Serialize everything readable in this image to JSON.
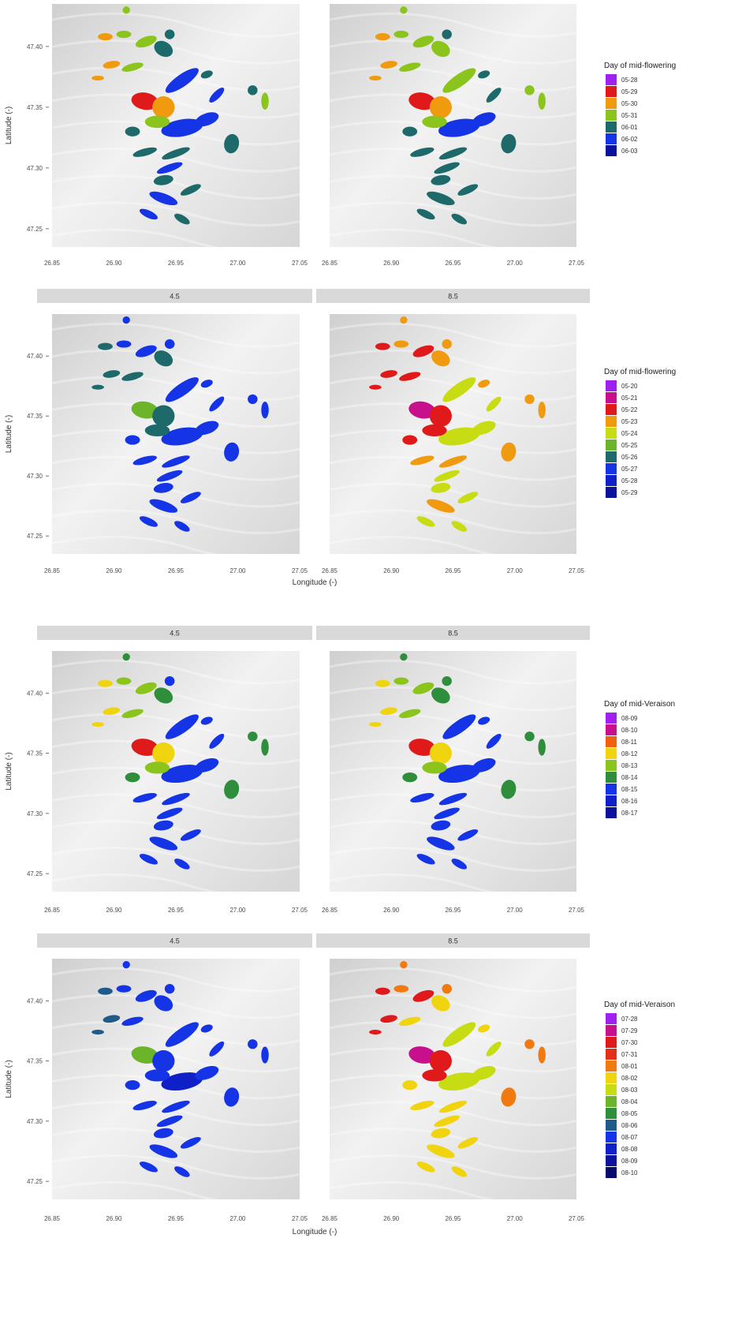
{
  "x_axis": {
    "label": "Longitude (-)",
    "ticks": [
      "26.85",
      "26.90",
      "26.95",
      "27.00",
      "27.05"
    ],
    "range": [
      26.85,
      27.05
    ]
  },
  "y_axis": {
    "label": "Latitude (-)",
    "ticks": [
      "47.25",
      "47.30",
      "47.35",
      "47.40"
    ],
    "range": [
      47.235,
      47.435
    ]
  },
  "colors": {
    "panel_bg": "#dcdcdc",
    "strip_bg": "#d9d9d9",
    "legend_palette": [
      "#a020f0",
      "#c8108c",
      "#e01a1a",
      "#f06010",
      "#f09a10",
      "#f0d410",
      "#c8dc14",
      "#6cb42a",
      "#2e8e3c",
      "#1e6a6a",
      "#1434e6",
      "#1020c8",
      "#0a129c",
      "#050a6c"
    ]
  },
  "figures": [
    {
      "strips": [],
      "show_ylabel": true,
      "show_xlabel": false,
      "legend": {
        "title": "Day of mid-flowering",
        "items": [
          {
            "label": "05-28",
            "color": "#a020f0"
          },
          {
            "label": "05-29",
            "color": "#e01a1a"
          },
          {
            "label": "05-30",
            "color": "#f09a10"
          },
          {
            "label": "05-31",
            "color": "#8cc41e"
          },
          {
            "label": "06-01",
            "color": "#1e6a6a"
          },
          {
            "label": "06-02",
            "color": "#1434e6"
          },
          {
            "label": "06-03",
            "color": "#0a129c"
          }
        ]
      }
    },
    {
      "strips": [
        "4.5",
        "8.5"
      ],
      "show_ylabel": true,
      "show_xlabel": true,
      "legend": {
        "title": "Day of mid-flowering",
        "items": [
          {
            "label": "05-20",
            "color": "#a020f0"
          },
          {
            "label": "05-21",
            "color": "#c8108c"
          },
          {
            "label": "05-22",
            "color": "#e01a1a"
          },
          {
            "label": "05-23",
            "color": "#f09a10"
          },
          {
            "label": "05-24",
            "color": "#c8dc14"
          },
          {
            "label": "05-25",
            "color": "#6cb42a"
          },
          {
            "label": "05-26",
            "color": "#1e6a6a"
          },
          {
            "label": "05-27",
            "color": "#1434e6"
          },
          {
            "label": "05-28",
            "color": "#1020c8"
          },
          {
            "label": "05-29",
            "color": "#0a129c"
          }
        ]
      }
    },
    {
      "strips": [
        "4.5",
        "8.5"
      ],
      "show_ylabel": true,
      "show_xlabel": false,
      "legend": {
        "title": "Day of mid-Veraison",
        "items": [
          {
            "label": "08-09",
            "color": "#a020f0"
          },
          {
            "label": "08-10",
            "color": "#c8108c"
          },
          {
            "label": "08-11",
            "color": "#f06010"
          },
          {
            "label": "08-12",
            "color": "#f0d410"
          },
          {
            "label": "08-13",
            "color": "#8cc41e"
          },
          {
            "label": "08-14",
            "color": "#2e8e3c"
          },
          {
            "label": "08-15",
            "color": "#1434e6"
          },
          {
            "label": "08-16",
            "color": "#1020c8"
          },
          {
            "label": "08-17",
            "color": "#0a129c"
          }
        ]
      }
    },
    {
      "strips": [
        "4.5",
        "8.5"
      ],
      "show_ylabel": true,
      "show_xlabel": true,
      "legend": {
        "title": "Day of mid-Veraison",
        "items": [
          {
            "label": "07-28",
            "color": "#a020f0"
          },
          {
            "label": "07-29",
            "color": "#c8108c"
          },
          {
            "label": "07-30",
            "color": "#e01a1a"
          },
          {
            "label": "07-31",
            "color": "#e0301a"
          },
          {
            "label": "08-01",
            "color": "#f07a10"
          },
          {
            "label": "08-02",
            "color": "#f0d410"
          },
          {
            "label": "08-03",
            "color": "#c8dc14"
          },
          {
            "label": "08-04",
            "color": "#6cb42a"
          },
          {
            "label": "08-05",
            "color": "#2e8e3c"
          },
          {
            "label": "08-06",
            "color": "#1e5a8a"
          },
          {
            "label": "08-07",
            "color": "#1434e6"
          },
          {
            "label": "08-08",
            "color": "#1020c8"
          },
          {
            "label": "08-09",
            "color": "#0a129c"
          },
          {
            "label": "08-10",
            "color": "#050a6c"
          }
        ]
      }
    }
  ],
  "parcels": [
    {
      "lon": 26.91,
      "lat": 47.43,
      "rx": 0.003,
      "ry": 0.003,
      "rot": -30
    },
    {
      "lon": 26.893,
      "lat": 47.408,
      "rx": 0.006,
      "ry": 0.003,
      "rot": 0
    },
    {
      "lon": 26.908,
      "lat": 47.41,
      "rx": 0.006,
      "ry": 0.003,
      "rot": 0
    },
    {
      "lon": 26.926,
      "lat": 47.404,
      "rx": 0.009,
      "ry": 0.004,
      "rot": -20
    },
    {
      "lon": 26.945,
      "lat": 47.41,
      "rx": 0.004,
      "ry": 0.004,
      "rot": 0
    },
    {
      "lon": 26.94,
      "lat": 47.398,
      "rx": 0.008,
      "ry": 0.006,
      "rot": 30
    },
    {
      "lon": 26.898,
      "lat": 47.385,
      "rx": 0.007,
      "ry": 0.003,
      "rot": -10
    },
    {
      "lon": 26.915,
      "lat": 47.383,
      "rx": 0.009,
      "ry": 0.003,
      "rot": -15
    },
    {
      "lon": 26.887,
      "lat": 47.374,
      "rx": 0.005,
      "ry": 0.002,
      "rot": 0
    },
    {
      "lon": 26.955,
      "lat": 47.372,
      "rx": 0.016,
      "ry": 0.005,
      "rot": -35
    },
    {
      "lon": 26.975,
      "lat": 47.377,
      "rx": 0.005,
      "ry": 0.003,
      "rot": -20
    },
    {
      "lon": 26.983,
      "lat": 47.36,
      "rx": 0.008,
      "ry": 0.003,
      "rot": -45
    },
    {
      "lon": 27.012,
      "lat": 47.364,
      "rx": 0.004,
      "ry": 0.004,
      "rot": 0
    },
    {
      "lon": 27.022,
      "lat": 47.355,
      "rx": 0.003,
      "ry": 0.007,
      "rot": 0
    },
    {
      "lon": 26.925,
      "lat": 47.355,
      "rx": 0.011,
      "ry": 0.007,
      "rot": 10
    },
    {
      "lon": 26.94,
      "lat": 47.35,
      "rx": 0.009,
      "ry": 0.009,
      "rot": 0
    },
    {
      "lon": 26.955,
      "lat": 47.333,
      "rx": 0.017,
      "ry": 0.007,
      "rot": -10
    },
    {
      "lon": 26.975,
      "lat": 47.34,
      "rx": 0.01,
      "ry": 0.005,
      "rot": -20
    },
    {
      "lon": 26.935,
      "lat": 47.338,
      "rx": 0.01,
      "ry": 0.005,
      "rot": 0
    },
    {
      "lon": 26.915,
      "lat": 47.33,
      "rx": 0.006,
      "ry": 0.004,
      "rot": 0
    },
    {
      "lon": 26.995,
      "lat": 47.32,
      "rx": 0.006,
      "ry": 0.008,
      "rot": 10
    },
    {
      "lon": 26.925,
      "lat": 47.313,
      "rx": 0.01,
      "ry": 0.003,
      "rot": -15
    },
    {
      "lon": 26.95,
      "lat": 47.312,
      "rx": 0.012,
      "ry": 0.003,
      "rot": -20
    },
    {
      "lon": 26.945,
      "lat": 47.3,
      "rx": 0.011,
      "ry": 0.003,
      "rot": -20
    },
    {
      "lon": 26.94,
      "lat": 47.29,
      "rx": 0.008,
      "ry": 0.004,
      "rot": -10
    },
    {
      "lon": 26.962,
      "lat": 47.282,
      "rx": 0.009,
      "ry": 0.003,
      "rot": -25
    },
    {
      "lon": 26.94,
      "lat": 47.275,
      "rx": 0.012,
      "ry": 0.004,
      "rot": 20
    },
    {
      "lon": 26.928,
      "lat": 47.262,
      "rx": 0.008,
      "ry": 0.003,
      "rot": 25
    },
    {
      "lon": 26.955,
      "lat": 47.258,
      "rx": 0.007,
      "ry": 0.003,
      "rot": 30
    }
  ],
  "parcel_colors": [
    [
      [
        "#8cc41e",
        "#f09a10",
        "#8cc41e",
        "#8cc41e",
        "#1e6a6a",
        "#1e6a6a",
        "#f09a10",
        "#8cc41e",
        "#f09a10",
        "#1434e6",
        "#1e6a6a",
        "#1434e6",
        "#1e6a6a",
        "#8cc41e",
        "#e01a1a",
        "#f09a10",
        "#1434e6",
        "#1434e6",
        "#8cc41e",
        "#1e6a6a",
        "#1e6a6a",
        "#1e6a6a",
        "#1e6a6a",
        "#1434e6",
        "#1e6a6a",
        "#1e6a6a",
        "#1434e6",
        "#1434e6",
        "#1e6a6a"
      ],
      [
        "#8cc41e",
        "#f09a10",
        "#8cc41e",
        "#8cc41e",
        "#1e6a6a",
        "#8cc41e",
        "#f09a10",
        "#8cc41e",
        "#f09a10",
        "#8cc41e",
        "#1e6a6a",
        "#1e6a6a",
        "#8cc41e",
        "#8cc41e",
        "#e01a1a",
        "#f09a10",
        "#1434e6",
        "#1434e6",
        "#8cc41e",
        "#1e6a6a",
        "#1e6a6a",
        "#1e6a6a",
        "#1e6a6a",
        "#1e6a6a",
        "#1e6a6a",
        "#1e6a6a",
        "#1e6a6a",
        "#1e6a6a",
        "#1e6a6a"
      ]
    ],
    [
      [
        "#1434e6",
        "#1e6a6a",
        "#1434e6",
        "#1434e6",
        "#1434e6",
        "#1e6a6a",
        "#1e6a6a",
        "#1e6a6a",
        "#1e6a6a",
        "#1434e6",
        "#1434e6",
        "#1434e6",
        "#1434e6",
        "#1434e6",
        "#6cb42a",
        "#1e6a6a",
        "#1434e6",
        "#1434e6",
        "#1e6a6a",
        "#1434e6",
        "#1434e6",
        "#1434e6",
        "#1434e6",
        "#1434e6",
        "#1434e6",
        "#1434e6",
        "#1434e6",
        "#1434e6",
        "#1434e6"
      ],
      [
        "#f09a10",
        "#e01a1a",
        "#f09a10",
        "#e01a1a",
        "#f09a10",
        "#f09a10",
        "#e01a1a",
        "#e01a1a",
        "#e01a1a",
        "#c8dc14",
        "#f09a10",
        "#c8dc14",
        "#f09a10",
        "#f09a10",
        "#c8108c",
        "#e01a1a",
        "#c8dc14",
        "#c8dc14",
        "#e01a1a",
        "#e01a1a",
        "#f09a10",
        "#f09a10",
        "#f09a10",
        "#c8dc14",
        "#c8dc14",
        "#c8dc14",
        "#f09a10",
        "#c8dc14",
        "#c8dc14"
      ]
    ],
    [
      [
        "#2e8e3c",
        "#f0d410",
        "#8cc41e",
        "#8cc41e",
        "#1434e6",
        "#2e8e3c",
        "#f0d410",
        "#8cc41e",
        "#f0d410",
        "#1434e6",
        "#1434e6",
        "#1434e6",
        "#2e8e3c",
        "#2e8e3c",
        "#e01a1a",
        "#f0d410",
        "#1434e6",
        "#1434e6",
        "#8cc41e",
        "#2e8e3c",
        "#2e8e3c",
        "#1434e6",
        "#1434e6",
        "#1434e6",
        "#1434e6",
        "#1434e6",
        "#1434e6",
        "#1434e6",
        "#1434e6"
      ],
      [
        "#2e8e3c",
        "#f0d410",
        "#8cc41e",
        "#8cc41e",
        "#2e8e3c",
        "#2e8e3c",
        "#f0d410",
        "#8cc41e",
        "#f0d410",
        "#1434e6",
        "#1434e6",
        "#1434e6",
        "#2e8e3c",
        "#2e8e3c",
        "#e01a1a",
        "#f0d410",
        "#1434e6",
        "#1434e6",
        "#8cc41e",
        "#2e8e3c",
        "#2e8e3c",
        "#1434e6",
        "#1434e6",
        "#1434e6",
        "#1434e6",
        "#1434e6",
        "#1434e6",
        "#1434e6",
        "#1434e6"
      ]
    ],
    [
      [
        "#1434e6",
        "#1e5a8a",
        "#1434e6",
        "#1434e6",
        "#1434e6",
        "#1434e6",
        "#1e5a8a",
        "#1434e6",
        "#1e5a8a",
        "#1434e6",
        "#1434e6",
        "#1434e6",
        "#1434e6",
        "#1434e6",
        "#6cb42a",
        "#1434e6",
        "#1020c8",
        "#1434e6",
        "#1434e6",
        "#1434e6",
        "#1434e6",
        "#1434e6",
        "#1434e6",
        "#1434e6",
        "#1434e6",
        "#1434e6",
        "#1434e6",
        "#1434e6",
        "#1434e6"
      ],
      [
        "#f07a10",
        "#e01a1a",
        "#f07a10",
        "#e01a1a",
        "#f07a10",
        "#f0d410",
        "#e01a1a",
        "#f0d410",
        "#e01a1a",
        "#c8dc14",
        "#f0d410",
        "#c8dc14",
        "#f07a10",
        "#f07a10",
        "#c8108c",
        "#e01a1a",
        "#c8dc14",
        "#c8dc14",
        "#e01a1a",
        "#f0d410",
        "#f07a10",
        "#f0d410",
        "#f0d410",
        "#f0d410",
        "#f0d410",
        "#f0d410",
        "#f0d410",
        "#f0d410",
        "#f0d410"
      ]
    ]
  ]
}
